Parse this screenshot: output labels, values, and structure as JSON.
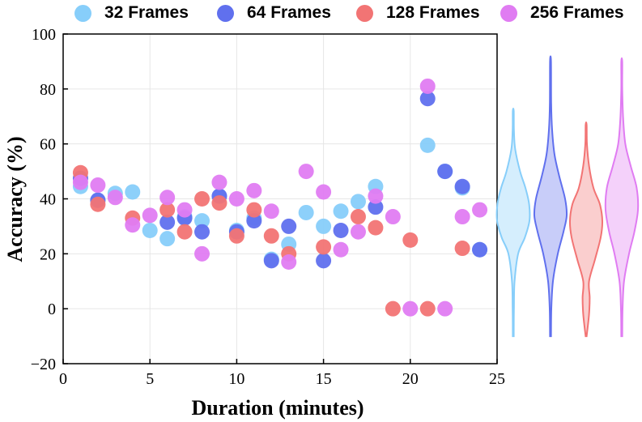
{
  "chart_data": {
    "type": "scatter",
    "xlabel": "Duration (minutes)",
    "ylabel": "Accuracy (%)",
    "xlim": [
      0,
      25
    ],
    "ylim": [
      -20,
      100
    ],
    "xticks": [
      "0",
      "5",
      "10",
      "15",
      "20",
      "25"
    ],
    "yticks": [
      "−20",
      "0",
      "20",
      "40",
      "60",
      "80",
      "100"
    ],
    "grid": true,
    "legend_position": "top",
    "series": [
      {
        "name": "32 Frames",
        "color": "#87CEFA",
        "points": [
          [
            1,
            44.5
          ],
          [
            2,
            39.5
          ],
          [
            3,
            42
          ],
          [
            4,
            42.5
          ],
          [
            5,
            28.5
          ],
          [
            6,
            25.5
          ],
          [
            7,
            33.5
          ],
          [
            8,
            32
          ],
          [
            9,
            41
          ],
          [
            10,
            28.5
          ],
          [
            11,
            33
          ],
          [
            12,
            18
          ],
          [
            13,
            23.5
          ],
          [
            14,
            35
          ],
          [
            15,
            30
          ],
          [
            16,
            35.5
          ],
          [
            17,
            39
          ],
          [
            18,
            44.5
          ],
          [
            21,
            59.5
          ],
          [
            22,
            50
          ],
          [
            23,
            44
          ],
          [
            24,
            21.5
          ]
        ]
      },
      {
        "name": "64 Frames",
        "color": "#6070EE",
        "points": [
          [
            1,
            47.5
          ],
          [
            2,
            39.5
          ],
          [
            6,
            31.5
          ],
          [
            7,
            33
          ],
          [
            8,
            28
          ],
          [
            9,
            41
          ],
          [
            10,
            28
          ],
          [
            11,
            32
          ],
          [
            12,
            17.5
          ],
          [
            13,
            30
          ],
          [
            15,
            17.5
          ],
          [
            16,
            28.5
          ],
          [
            18,
            37
          ],
          [
            21,
            76.5
          ],
          [
            22,
            50
          ],
          [
            23,
            44.5
          ],
          [
            24,
            21.5
          ]
        ]
      },
      {
        "name": "128 Frames",
        "color": "#F27474",
        "points": [
          [
            1,
            49.5
          ],
          [
            2,
            38
          ],
          [
            4,
            33
          ],
          [
            6,
            36
          ],
          [
            7,
            28
          ],
          [
            8,
            40
          ],
          [
            9,
            38.5
          ],
          [
            10,
            26.5
          ],
          [
            11,
            36
          ],
          [
            12,
            26.5
          ],
          [
            13,
            20
          ],
          [
            15,
            22.5
          ],
          [
            17,
            33.5
          ],
          [
            18,
            29.5
          ],
          [
            19,
            0
          ],
          [
            20,
            25
          ],
          [
            21,
            0
          ],
          [
            23,
            22
          ]
        ]
      },
      {
        "name": "256 Frames",
        "color": "#E07CF2",
        "points": [
          [
            1,
            46
          ],
          [
            2,
            45
          ],
          [
            3,
            40.5
          ],
          [
            4,
            30.5
          ],
          [
            5,
            34
          ],
          [
            6,
            40.5
          ],
          [
            7,
            36
          ],
          [
            8,
            20
          ],
          [
            9,
            46
          ],
          [
            10,
            40
          ],
          [
            11,
            43
          ],
          [
            12,
            35.5
          ],
          [
            13,
            17
          ],
          [
            14,
            50
          ],
          [
            15,
            42.5
          ],
          [
            16,
            21.5
          ],
          [
            17,
            28
          ],
          [
            18,
            41
          ],
          [
            19,
            33.5
          ],
          [
            20,
            0
          ],
          [
            21,
            81
          ],
          [
            22,
            0
          ],
          [
            23,
            33.5
          ],
          [
            24,
            36
          ]
        ]
      }
    ],
    "violins": [
      {
        "series": "32 Frames",
        "color": "#87CEFA",
        "range": [
          -10,
          72
        ],
        "widths": [
          [
            -10,
            0.01
          ],
          [
            0,
            0.04
          ],
          [
            10,
            0.08
          ],
          [
            20,
            0.3
          ],
          [
            26,
            0.72
          ],
          [
            32,
            1.0
          ],
          [
            38,
            0.98
          ],
          [
            44,
            0.75
          ],
          [
            50,
            0.42
          ],
          [
            58,
            0.12
          ],
          [
            65,
            0.04
          ],
          [
            72,
            0.01
          ]
        ]
      },
      {
        "series": "64 Frames",
        "color": "#6070EE",
        "range": [
          -10,
          90
        ],
        "widths": [
          [
            -10,
            0.01
          ],
          [
            0,
            0.05
          ],
          [
            10,
            0.15
          ],
          [
            20,
            0.45
          ],
          [
            28,
            0.8
          ],
          [
            34,
            1.0
          ],
          [
            40,
            0.9
          ],
          [
            48,
            0.55
          ],
          [
            56,
            0.25
          ],
          [
            65,
            0.1
          ],
          [
            75,
            0.04
          ],
          [
            90,
            0.01
          ]
        ]
      },
      {
        "series": "128 Frames",
        "color": "#F27474",
        "range": [
          -10,
          67
        ],
        "widths": [
          [
            -10,
            0.01
          ],
          [
            -2,
            0.18
          ],
          [
            4,
            0.22
          ],
          [
            10,
            0.18
          ],
          [
            18,
            0.55
          ],
          [
            26,
            0.9
          ],
          [
            32,
            1.0
          ],
          [
            38,
            0.85
          ],
          [
            44,
            0.45
          ],
          [
            52,
            0.18
          ],
          [
            60,
            0.05
          ],
          [
            67,
            0.01
          ]
        ]
      },
      {
        "series": "256 Frames",
        "color": "#E07CF2",
        "range": [
          -10,
          90
        ],
        "widths": [
          [
            -10,
            0.01
          ],
          [
            0,
            0.05
          ],
          [
            10,
            0.14
          ],
          [
            20,
            0.45
          ],
          [
            28,
            0.78
          ],
          [
            36,
            1.0
          ],
          [
            44,
            0.92
          ],
          [
            52,
            0.55
          ],
          [
            60,
            0.22
          ],
          [
            70,
            0.08
          ],
          [
            80,
            0.03
          ],
          [
            90,
            0.01
          ]
        ]
      }
    ]
  }
}
